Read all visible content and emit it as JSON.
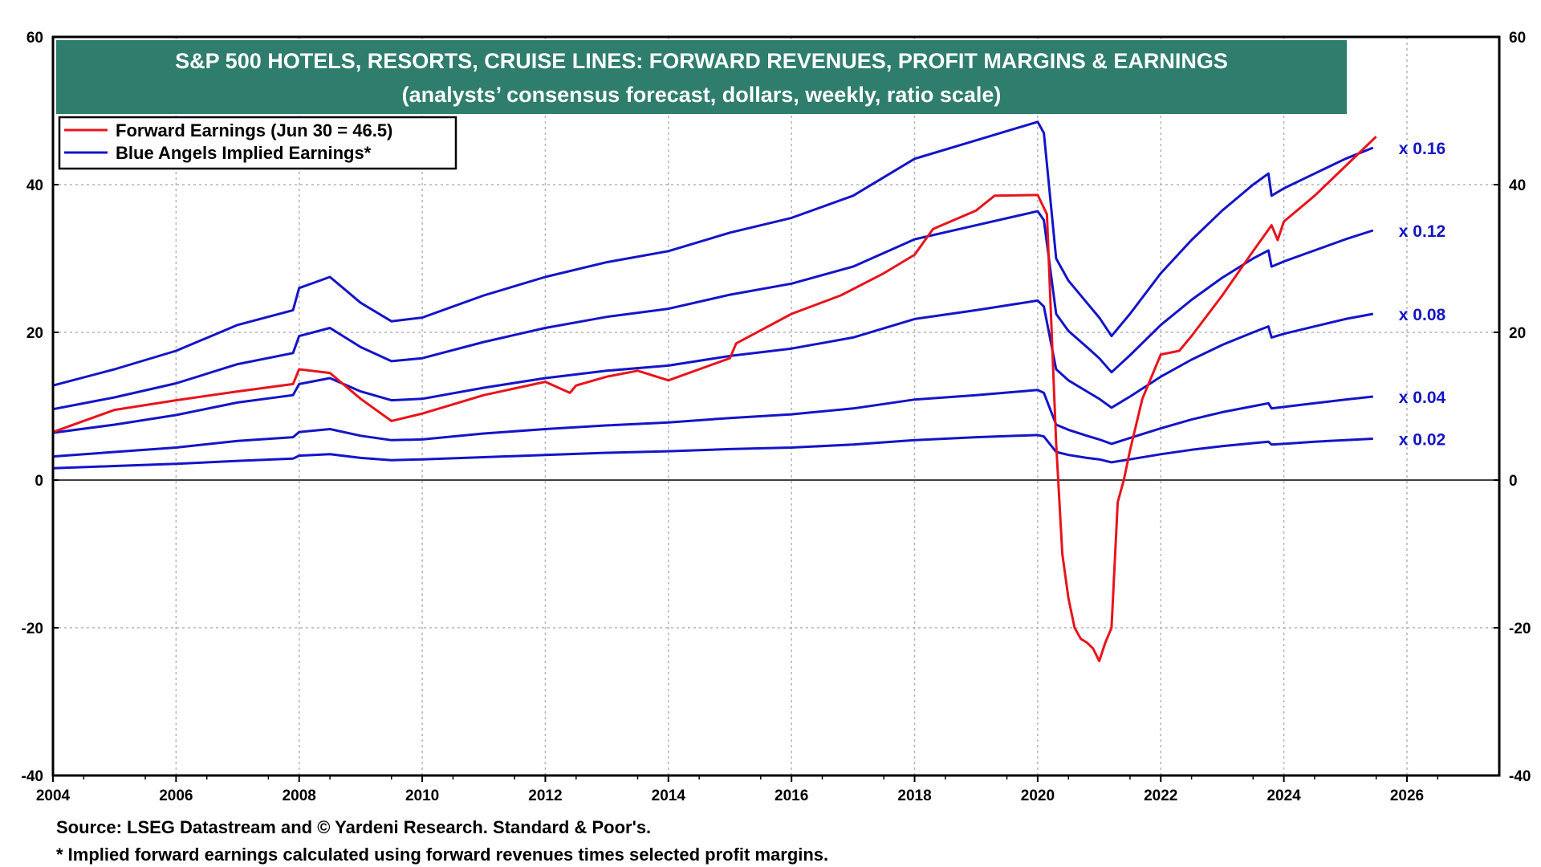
{
  "chart_data": {
    "type": "line",
    "title": "S&P 500 HOTELS, RESORTS, CRUISE LINES: FORWARD REVENUES, PROFIT MARGINS & EARNINGS",
    "subtitle": "(analysts’ consensus forecast, dollars, weekly, ratio scale)",
    "xlim": [
      2004,
      2027.5
    ],
    "ylim": [
      -40,
      60
    ],
    "x_ticks": [
      "2004",
      "2006",
      "2008",
      "2010",
      "2012",
      "2014",
      "2016",
      "2018",
      "2020",
      "2022",
      "2024",
      "2026"
    ],
    "y_ticks": [
      "60",
      "40",
      "20",
      "0",
      "-20",
      "-40"
    ],
    "grid": true,
    "legend_position": "top-left",
    "legend": [
      {
        "label": "Forward Earnings (Jun 30 = 46.5)",
        "color": "#e8141c"
      },
      {
        "label": "Blue Angels Implied Earnings*",
        "color": "#1414c8"
      }
    ],
    "series": [
      {
        "name": "Forward Earnings (Jun 30 = 46.5)",
        "color": "#e8141c",
        "x": [
          2004.0,
          2005.0,
          2006.0,
          2007.0,
          2007.9,
          2008.0,
          2008.5,
          2009.0,
          2009.5,
          2010.0,
          2011.0,
          2012.0,
          2012.4,
          2012.5,
          2013.0,
          2013.5,
          2014.0,
          2015.0,
          2015.1,
          2016.0,
          2016.8,
          2017.5,
          2018.0,
          2018.3,
          2019.0,
          2019.3,
          2020.0,
          2020.15,
          2020.3,
          2020.4,
          2020.5,
          2020.6,
          2020.7,
          2020.8,
          2020.9,
          2021.0,
          2021.1,
          2021.2,
          2021.3,
          2021.4,
          2021.5,
          2021.7,
          2022.0,
          2022.3,
          2022.5,
          2023.0,
          2023.5,
          2023.8,
          2023.9,
          2024.0,
          2024.5,
          2025.0,
          2025.5
        ],
        "y": [
          6.5,
          9.5,
          10.8,
          12.0,
          13.0,
          15.0,
          14.5,
          11.0,
          8.0,
          9.0,
          11.5,
          13.3,
          11.8,
          12.8,
          14.0,
          14.8,
          13.5,
          16.5,
          18.5,
          22.5,
          25.0,
          28.0,
          30.5,
          34.0,
          36.5,
          38.5,
          38.6,
          36.0,
          5.0,
          -10.0,
          -16.0,
          -20.0,
          -21.5,
          -22.0,
          -22.8,
          -24.5,
          -22.0,
          -20.0,
          -3.0,
          0.0,
          4.0,
          11.0,
          17.0,
          17.5,
          19.5,
          25.0,
          31.0,
          34.5,
          32.5,
          35.0,
          38.5,
          42.5,
          46.5
        ]
      },
      {
        "name": "",
        "color": "#1414c8",
        "label": "x 0.16",
        "x": [
          2004.0,
          2005.0,
          2006.0,
          2007.0,
          2007.9,
          2008.0,
          2008.5,
          2009.0,
          2009.5,
          2010.0,
          2011.0,
          2012.0,
          2013.0,
          2014.0,
          2015.0,
          2016.0,
          2017.0,
          2018.0,
          2019.0,
          2020.0,
          2020.1,
          2020.3,
          2020.5,
          2020.8,
          2021.0,
          2021.2,
          2021.5,
          2022.0,
          2022.5,
          2023.0,
          2023.5,
          2023.75,
          2023.8,
          2024.0,
          2024.5,
          2025.0,
          2025.45
        ],
        "y": [
          12.8,
          15.0,
          17.5,
          21.0,
          23.0,
          26.0,
          27.5,
          24.0,
          21.5,
          22.0,
          25.0,
          27.5,
          29.5,
          31.0,
          33.5,
          35.5,
          38.5,
          43.5,
          46.0,
          48.5,
          47.0,
          30.0,
          27.0,
          24.0,
          22.0,
          19.5,
          22.5,
          28.0,
          32.5,
          36.5,
          40.0,
          41.5,
          38.5,
          39.5,
          41.5,
          43.5,
          45.0
        ]
      },
      {
        "name": "",
        "color": "#1414c8",
        "label": "x 0.12",
        "x": [
          2004.0,
          2005.0,
          2006.0,
          2007.0,
          2007.9,
          2008.0,
          2008.5,
          2009.0,
          2009.5,
          2010.0,
          2011.0,
          2012.0,
          2013.0,
          2014.0,
          2015.0,
          2016.0,
          2017.0,
          2018.0,
          2019.0,
          2020.0,
          2020.1,
          2020.3,
          2020.5,
          2020.8,
          2021.0,
          2021.2,
          2021.5,
          2022.0,
          2022.5,
          2023.0,
          2023.5,
          2023.75,
          2023.8,
          2024.0,
          2024.5,
          2025.0,
          2025.45
        ],
        "y": [
          9.6,
          11.2,
          13.1,
          15.7,
          17.2,
          19.5,
          20.6,
          18.0,
          16.1,
          16.5,
          18.7,
          20.6,
          22.1,
          23.2,
          25.1,
          26.6,
          28.9,
          32.6,
          34.5,
          36.4,
          35.2,
          22.5,
          20.2,
          18.0,
          16.5,
          14.6,
          16.9,
          21.0,
          24.4,
          27.4,
          30.0,
          31.1,
          28.9,
          29.6,
          31.1,
          32.6,
          33.8
        ]
      },
      {
        "name": "",
        "color": "#1414c8",
        "label": "x 0.08",
        "x": [
          2004.0,
          2005.0,
          2006.0,
          2007.0,
          2007.9,
          2008.0,
          2008.5,
          2009.0,
          2009.5,
          2010.0,
          2011.0,
          2012.0,
          2013.0,
          2014.0,
          2015.0,
          2016.0,
          2017.0,
          2018.0,
          2019.0,
          2020.0,
          2020.1,
          2020.3,
          2020.5,
          2020.8,
          2021.0,
          2021.2,
          2021.5,
          2022.0,
          2022.5,
          2023.0,
          2023.5,
          2023.75,
          2023.8,
          2024.0,
          2024.5,
          2025.0,
          2025.45
        ],
        "y": [
          6.4,
          7.5,
          8.8,
          10.5,
          11.5,
          13.0,
          13.8,
          12.0,
          10.8,
          11.0,
          12.5,
          13.8,
          14.8,
          15.5,
          16.8,
          17.8,
          19.3,
          21.8,
          23.0,
          24.3,
          23.5,
          15.0,
          13.5,
          12.0,
          11.0,
          9.8,
          11.3,
          14.0,
          16.3,
          18.3,
          20.0,
          20.8,
          19.3,
          19.8,
          20.8,
          21.8,
          22.5
        ]
      },
      {
        "name": "",
        "color": "#1414c8",
        "label": "x 0.04",
        "x": [
          2004.0,
          2005.0,
          2006.0,
          2007.0,
          2007.9,
          2008.0,
          2008.5,
          2009.0,
          2009.5,
          2010.0,
          2011.0,
          2012.0,
          2013.0,
          2014.0,
          2015.0,
          2016.0,
          2017.0,
          2018.0,
          2019.0,
          2020.0,
          2020.1,
          2020.3,
          2020.5,
          2020.8,
          2021.0,
          2021.2,
          2021.5,
          2022.0,
          2022.5,
          2023.0,
          2023.5,
          2023.75,
          2023.8,
          2024.0,
          2024.5,
          2025.0,
          2025.45
        ],
        "y": [
          3.2,
          3.8,
          4.4,
          5.3,
          5.8,
          6.5,
          6.9,
          6.0,
          5.4,
          5.5,
          6.3,
          6.9,
          7.4,
          7.8,
          8.4,
          8.9,
          9.7,
          10.9,
          11.5,
          12.2,
          11.8,
          7.5,
          6.8,
          6.0,
          5.5,
          4.9,
          5.7,
          7.0,
          8.2,
          9.2,
          10.0,
          10.4,
          9.7,
          9.9,
          10.4,
          10.9,
          11.3
        ]
      },
      {
        "name": "",
        "color": "#1414c8",
        "label": "x 0.02",
        "x": [
          2004.0,
          2005.0,
          2006.0,
          2007.0,
          2007.9,
          2008.0,
          2008.5,
          2009.0,
          2009.5,
          2010.0,
          2011.0,
          2012.0,
          2013.0,
          2014.0,
          2015.0,
          2016.0,
          2017.0,
          2018.0,
          2019.0,
          2020.0,
          2020.1,
          2020.3,
          2020.5,
          2020.8,
          2021.0,
          2021.2,
          2021.5,
          2022.0,
          2022.5,
          2023.0,
          2023.5,
          2023.75,
          2023.8,
          2024.0,
          2024.5,
          2025.0,
          2025.45
        ],
        "y": [
          1.6,
          1.9,
          2.2,
          2.6,
          2.9,
          3.3,
          3.5,
          3.0,
          2.7,
          2.8,
          3.1,
          3.4,
          3.7,
          3.9,
          4.2,
          4.4,
          4.8,
          5.4,
          5.8,
          6.1,
          5.9,
          3.8,
          3.4,
          3.0,
          2.8,
          2.4,
          2.8,
          3.5,
          4.1,
          4.6,
          5.0,
          5.2,
          4.8,
          4.9,
          5.2,
          5.4,
          5.6
        ]
      }
    ]
  },
  "footer": {
    "source": "Source: LSEG Datastream and © Yardeni Research. Standard & Poor's.",
    "note": "* Implied forward earnings calculated using forward revenues times selected profit margins."
  }
}
